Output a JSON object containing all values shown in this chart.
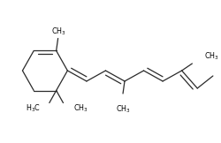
{
  "bg_color": "#ffffff",
  "line_color": "#2a2a2a",
  "line_width": 0.9,
  "font_size": 5.8,
  "font_family": "DejaVu Sans",
  "figsize": [
    2.51,
    1.62
  ],
  "dpi": 100
}
